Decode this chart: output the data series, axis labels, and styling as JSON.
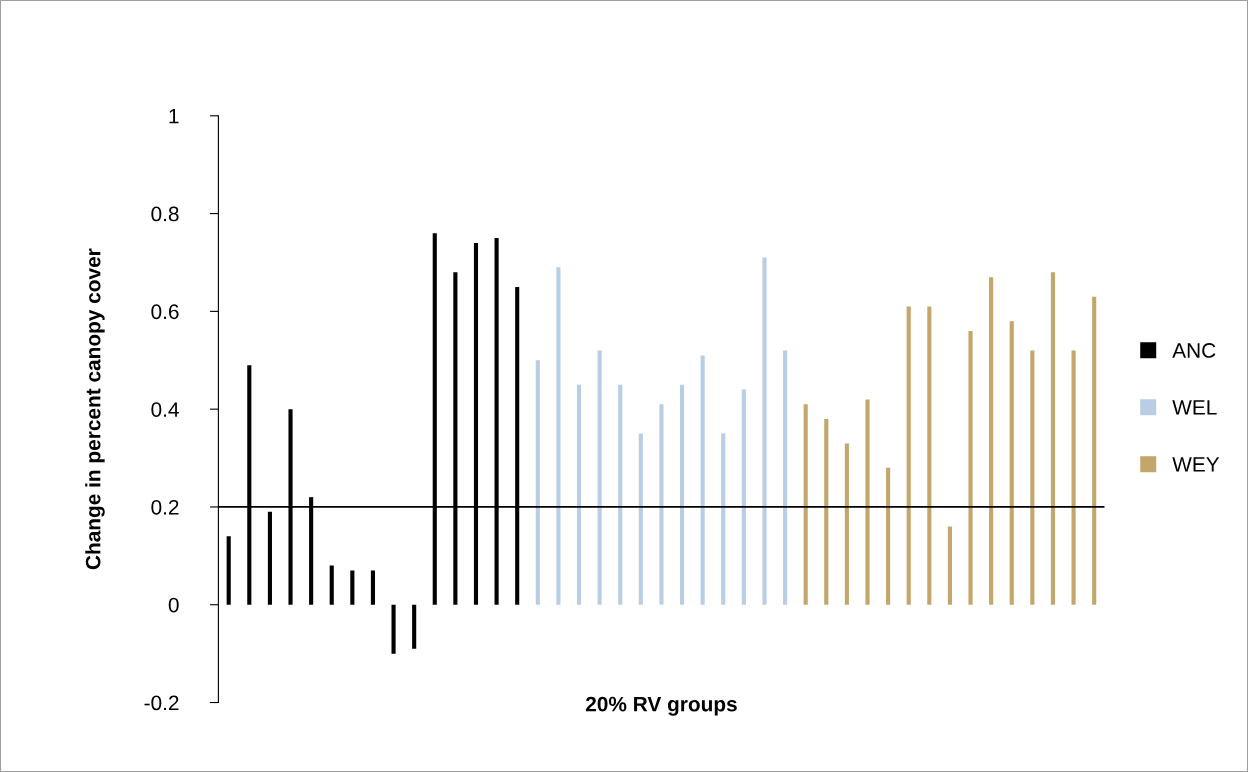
{
  "chart_data": {
    "type": "bar",
    "xlabel": "20% RV groups",
    "ylabel": "Change in percent canopy cover",
    "categories": [
      null,
      null,
      null,
      null,
      null,
      null,
      null,
      null,
      null,
      null,
      null,
      null,
      null,
      null,
      null,
      null,
      null,
      null,
      null,
      null,
      null,
      null,
      null,
      null,
      null,
      null,
      null,
      null,
      null,
      null,
      null,
      null,
      null,
      null,
      null,
      null,
      null,
      null,
      null,
      null,
      null,
      null,
      null
    ],
    "series": [
      {
        "name": "ANC",
        "color": "#000000",
        "values": [
          0.14,
          0.49,
          0.19,
          0.4,
          0.22,
          0.08,
          0.07,
          0.07,
          -0.1,
          -0.09,
          0.76,
          0.68,
          0.74,
          0.75,
          0.65,
          null,
          null,
          null,
          null,
          null,
          null,
          null,
          null,
          null,
          null,
          null,
          null,
          null,
          null,
          null,
          null,
          null,
          null,
          null,
          null,
          null,
          null,
          null,
          null,
          null,
          null,
          null,
          null
        ]
      },
      {
        "name": "WEL",
        "color": "#b9cde5",
        "values": [
          null,
          null,
          null,
          null,
          null,
          null,
          null,
          null,
          null,
          null,
          null,
          null,
          null,
          null,
          null,
          0.5,
          0.69,
          0.45,
          0.52,
          0.45,
          0.35,
          0.41,
          0.45,
          0.51,
          0.35,
          0.44,
          0.71,
          0.52,
          null,
          null,
          null,
          null,
          null,
          null,
          null,
          null,
          null,
          null,
          null,
          null,
          null,
          null,
          null
        ]
      },
      {
        "name": "WEY",
        "color": "#c4a66a",
        "values": [
          null,
          null,
          null,
          null,
          null,
          null,
          null,
          null,
          null,
          null,
          null,
          null,
          null,
          null,
          null,
          null,
          null,
          null,
          null,
          null,
          null,
          null,
          null,
          null,
          null,
          null,
          null,
          null,
          0.41,
          0.38,
          0.33,
          0.42,
          0.28,
          0.61,
          0.61,
          0.16,
          0.56,
          0.67,
          0.58,
          0.52,
          0.68,
          0.52,
          0.63
        ]
      }
    ],
    "ylim": [
      -0.2,
      1
    ],
    "yticks": [
      {
        "value": -0.2,
        "label": "-0.2"
      },
      0,
      0.2,
      0.4,
      0.6,
      0.8,
      1
    ],
    "ref_lines": [
      {
        "axis": "y",
        "value": 0.2,
        "color": "#000000"
      }
    ],
    "grid": false,
    "legend": "right"
  }
}
